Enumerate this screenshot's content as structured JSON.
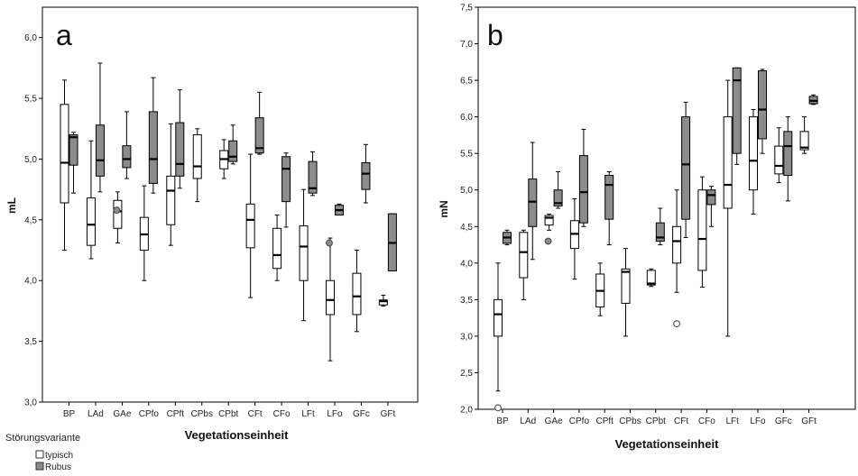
{
  "legend": {
    "title": "Störungsvariante",
    "entries": [
      {
        "label": "typisch",
        "color": "#ffffff"
      },
      {
        "label": "Rubus",
        "color": "#8c8c8c"
      }
    ]
  },
  "chart_data": [
    {
      "type": "boxplot",
      "panel_label": "a",
      "ylabel": "mL",
      "xlabel": "Vegetationseinheit",
      "ylim": [
        3.0,
        6.25
      ],
      "yticks": [
        "3,0",
        "3,5",
        "4,0",
        "4,5",
        "5,0",
        "5,5",
        "6,0"
      ],
      "ytick_values": [
        3.0,
        3.5,
        4.0,
        4.5,
        5.0,
        5.5,
        6.0
      ],
      "categories": [
        "BP",
        "LAd",
        "GAe",
        "CPfo",
        "CPft",
        "CPbs",
        "CPbt",
        "CFt",
        "CFo",
        "LFt",
        "LFo",
        "GFc",
        "GFt"
      ],
      "series": [
        {
          "name": "typisch",
          "color": "#ffffff",
          "boxes": [
            {
              "category": "BP",
              "whisker_low": 4.25,
              "q1": 4.64,
              "median": 4.97,
              "q3": 5.45,
              "whisker_high": 5.65
            },
            {
              "category": "LAd",
              "whisker_low": 4.18,
              "q1": 4.29,
              "median": 4.46,
              "q3": 4.68,
              "whisker_high": 5.15
            },
            {
              "category": "GAe",
              "whisker_low": 4.31,
              "q1": 4.43,
              "median": 4.57,
              "q3": 4.66,
              "whisker_high": 4.73
            },
            {
              "category": "CPfo",
              "whisker_low": 4.0,
              "q1": 4.25,
              "median": 4.38,
              "q3": 4.52,
              "whisker_high": 4.78
            },
            {
              "category": "CPft",
              "whisker_low": 4.29,
              "q1": 4.46,
              "median": 4.74,
              "q3": 4.86,
              "whisker_high": 5.29
            },
            {
              "category": "CPbs",
              "whisker_low": 4.65,
              "q1": 4.84,
              "median": 4.94,
              "q3": 5.2,
              "whisker_high": 5.25
            },
            {
              "category": "CPbt",
              "whisker_low": 4.84,
              "q1": 4.92,
              "median": 5.0,
              "q3": 5.07,
              "whisker_high": 5.16
            },
            {
              "category": "CFt",
              "whisker_low": 3.86,
              "q1": 4.27,
              "median": 4.5,
              "q3": 4.63,
              "whisker_high": 5.04
            },
            {
              "category": "CFo",
              "whisker_low": 4.0,
              "q1": 4.1,
              "median": 4.21,
              "q3": 4.43,
              "whisker_high": 4.54
            },
            {
              "category": "LFt",
              "whisker_low": 3.67,
              "q1": 4.0,
              "median": 4.28,
              "q3": 4.45,
              "whisker_high": 4.75
            },
            {
              "category": "LFo",
              "whisker_low": 3.34,
              "q1": 3.72,
              "median": 3.84,
              "q3": 4.0,
              "whisker_high": 4.35
            },
            {
              "category": "GFc",
              "whisker_low": 3.58,
              "q1": 3.72,
              "median": 3.87,
              "q3": 4.06,
              "whisker_high": 4.25
            },
            {
              "category": "GFt",
              "whisker_low": 3.79,
              "q1": 3.8,
              "median": 3.83,
              "q3": 3.84,
              "whisker_high": 3.88
            }
          ]
        },
        {
          "name": "Rubus",
          "color": "#8c8c8c",
          "boxes": [
            {
              "category": "BP",
              "whisker_low": 4.72,
              "q1": 4.95,
              "median": 5.18,
              "q3": 5.2,
              "whisker_high": 5.22
            },
            {
              "category": "LAd",
              "whisker_low": 4.73,
              "q1": 4.86,
              "median": 4.99,
              "q3": 5.28,
              "whisker_high": 5.79
            },
            {
              "category": "GAe",
              "whisker_low": 4.84,
              "q1": 4.93,
              "median": 5.0,
              "q3": 5.11,
              "whisker_high": 5.39,
              "outliers": [
                4.58
              ],
              "outlier_side": "left"
            },
            {
              "category": "CPfo",
              "whisker_low": 4.72,
              "q1": 4.8,
              "median": 5.0,
              "q3": 5.39,
              "whisker_high": 5.67
            },
            {
              "category": "CPft",
              "whisker_low": 4.76,
              "q1": 4.86,
              "median": 4.96,
              "q3": 5.3,
              "whisker_high": 5.57
            },
            {
              "category": "CPbt",
              "whisker_low": 4.96,
              "q1": 4.98,
              "median": 5.02,
              "q3": 5.15,
              "whisker_high": 5.28
            },
            {
              "category": "CFt",
              "whisker_low": 5.04,
              "q1": 5.05,
              "median": 5.09,
              "q3": 5.34,
              "whisker_high": 5.55
            },
            {
              "category": "CFo",
              "whisker_low": 4.44,
              "q1": 4.65,
              "median": 4.92,
              "q3": 5.02,
              "whisker_high": 5.05
            },
            {
              "category": "LFt",
              "whisker_low": 4.7,
              "q1": 4.72,
              "median": 4.76,
              "q3": 4.98,
              "whisker_high": 5.06
            },
            {
              "category": "LFo",
              "whisker_low": 4.54,
              "q1": 4.54,
              "median": 4.58,
              "q3": 4.62,
              "whisker_high": 4.63,
              "outliers": [
                4.31
              ],
              "outlier_side": "left"
            },
            {
              "category": "GFc",
              "whisker_low": 4.64,
              "q1": 4.75,
              "median": 4.88,
              "q3": 4.97,
              "whisker_high": 5.12
            },
            {
              "category": "GFt",
              "whisker_low": 4.08,
              "q1": 4.08,
              "median": 4.31,
              "q3": 4.55,
              "whisker_high": 4.55
            }
          ]
        }
      ]
    },
    {
      "type": "boxplot",
      "panel_label": "b",
      "ylabel": "mN",
      "xlabel": "Vegetationseinheit",
      "ylim": [
        2.0,
        7.5
      ],
      "yticks": [
        "2,0",
        "2,5",
        "3,0",
        "3,5",
        "4,0",
        "4,5",
        "5,0",
        "5,5",
        "6,0",
        "6,5",
        "7,0",
        "7,5"
      ],
      "ytick_values": [
        2.0,
        2.5,
        3.0,
        3.5,
        4.0,
        4.5,
        5.0,
        5.5,
        6.0,
        6.5,
        7.0,
        7.5
      ],
      "categories": [
        "BP",
        "LAd",
        "GAe",
        "CPfo",
        "CPft",
        "CPbs",
        "CPbt",
        "CFt",
        "CFo",
        "LFt",
        "LFo",
        "GFc",
        "GFt"
      ],
      "series": [
        {
          "name": "typisch",
          "color": "#ffffff",
          "boxes": [
            {
              "category": "BP",
              "whisker_low": 2.25,
              "q1": 3.0,
              "median": 3.3,
              "q3": 3.5,
              "whisker_high": 4.0,
              "outliers": [
                2.02
              ],
              "outlier_side": "center"
            },
            {
              "category": "LAd",
              "whisker_low": 3.5,
              "q1": 3.8,
              "median": 4.15,
              "q3": 4.42,
              "whisker_high": 4.45
            },
            {
              "category": "GAe",
              "whisker_low": 4.45,
              "q1": 4.52,
              "median": 4.62,
              "q3": 4.65,
              "whisker_high": 4.67
            },
            {
              "category": "CPfo",
              "whisker_low": 3.78,
              "q1": 4.2,
              "median": 4.4,
              "q3": 4.58,
              "whisker_high": 4.88
            },
            {
              "category": "CPft",
              "whisker_low": 3.28,
              "q1": 3.4,
              "median": 3.62,
              "q3": 3.85,
              "whisker_high": 4.0
            },
            {
              "category": "CPbs",
              "whisker_low": 3.0,
              "q1": 3.45,
              "median": 3.88,
              "q3": 3.92,
              "whisker_high": 4.2
            },
            {
              "category": "CPbt",
              "whisker_low": 3.68,
              "q1": 3.7,
              "median": 3.72,
              "q3": 3.9,
              "whisker_high": 3.92
            },
            {
              "category": "CFt",
              "whisker_low": 3.6,
              "q1": 4.0,
              "median": 4.3,
              "q3": 4.5,
              "whisker_high": 5.0,
              "outliers": [
                3.17
              ],
              "outlier_side": "center"
            },
            {
              "category": "CFo",
              "whisker_low": 3.67,
              "q1": 3.9,
              "median": 4.33,
              "q3": 5.0,
              "whisker_high": 5.18
            },
            {
              "category": "LFt",
              "whisker_low": 3.0,
              "q1": 4.75,
              "median": 5.07,
              "q3": 6.0,
              "whisker_high": 6.5
            },
            {
              "category": "LFo",
              "whisker_low": 4.67,
              "q1": 5.0,
              "median": 5.4,
              "q3": 6.0,
              "whisker_high": 6.1
            },
            {
              "category": "GFc",
              "whisker_low": 5.1,
              "q1": 5.22,
              "median": 5.33,
              "q3": 5.6,
              "whisker_high": 5.85
            },
            {
              "category": "GFt",
              "whisker_low": 5.5,
              "q1": 5.55,
              "median": 5.58,
              "q3": 5.8,
              "whisker_high": 6.0
            }
          ]
        },
        {
          "name": "Rubus",
          "color": "#8c8c8c",
          "boxes": [
            {
              "category": "BP",
              "whisker_low": 4.25,
              "q1": 4.27,
              "median": 4.35,
              "q3": 4.42,
              "whisker_high": 4.45
            },
            {
              "category": "LAd",
              "whisker_low": 4.05,
              "q1": 4.5,
              "median": 4.84,
              "q3": 5.15,
              "whisker_high": 5.65
            },
            {
              "category": "GAe",
              "whisker_low": 4.75,
              "q1": 4.78,
              "median": 4.82,
              "q3": 5.0,
              "whisker_high": 5.25,
              "outliers": [
                4.3
              ],
              "outlier_side": "left"
            },
            {
              "category": "CPfo",
              "whisker_low": 4.5,
              "q1": 4.55,
              "median": 4.97,
              "q3": 5.47,
              "whisker_high": 5.83
            },
            {
              "category": "CPft",
              "whisker_low": 4.25,
              "q1": 4.6,
              "median": 5.07,
              "q3": 5.2,
              "whisker_high": 5.25
            },
            {
              "category": "CPbt",
              "whisker_low": 4.25,
              "q1": 4.3,
              "median": 4.35,
              "q3": 4.55,
              "whisker_high": 4.75
            },
            {
              "category": "CFt",
              "whisker_low": 4.35,
              "q1": 4.6,
              "median": 5.35,
              "q3": 6.0,
              "whisker_high": 6.2
            },
            {
              "category": "CFo",
              "whisker_low": 4.5,
              "q1": 4.8,
              "median": 4.93,
              "q3": 5.0,
              "whisker_high": 5.05
            },
            {
              "category": "LFt",
              "whisker_low": 5.35,
              "q1": 5.5,
              "median": 6.5,
              "q3": 6.67,
              "whisker_high": 6.67
            },
            {
              "category": "LFo",
              "whisker_low": 5.5,
              "q1": 5.7,
              "median": 6.1,
              "q3": 6.63,
              "whisker_high": 6.65
            },
            {
              "category": "GFc",
              "whisker_low": 4.85,
              "q1": 5.2,
              "median": 5.6,
              "q3": 5.8,
              "whisker_high": 6.0
            },
            {
              "category": "GFt",
              "whisker_low": 6.17,
              "q1": 6.18,
              "median": 6.22,
              "q3": 6.28,
              "whisker_high": 6.3
            }
          ]
        }
      ]
    }
  ]
}
